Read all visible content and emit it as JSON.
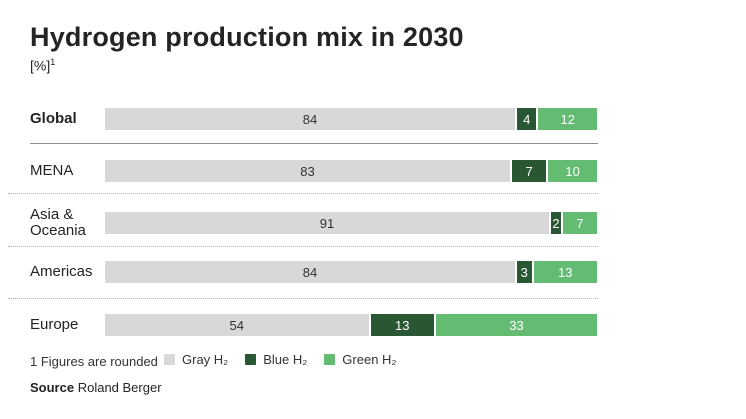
{
  "header": {
    "title": "Hydrogen production mix in 2030",
    "unit_label": "[%]",
    "footnote_marker": "1"
  },
  "chart_data": {
    "type": "bar",
    "orientation": "horizontal",
    "stacked": true,
    "unit": "%",
    "xlim": [
      0,
      100
    ],
    "legend_position": "bottom",
    "categories": [
      "Global",
      "MENA",
      "Asia & Oceania",
      "Americas",
      "Europe"
    ],
    "series": [
      {
        "name": "Gray H₂",
        "color": "#d8d8d8",
        "text_color": "#333333",
        "values": [
          84,
          83,
          91,
          84,
          54
        ]
      },
      {
        "name": "Blue H₂",
        "color": "#2a5733",
        "text_color": "#ffffff",
        "values": [
          4,
          7,
          2,
          3,
          13
        ]
      },
      {
        "name": "Green H₂",
        "color": "#63bc72",
        "text_color": "#ffffff",
        "values": [
          12,
          10,
          7,
          13,
          33
        ]
      }
    ]
  },
  "footer": {
    "footnote": "1 Figures are rounded",
    "source_label": "Source",
    "source_text": "Roland Berger"
  }
}
